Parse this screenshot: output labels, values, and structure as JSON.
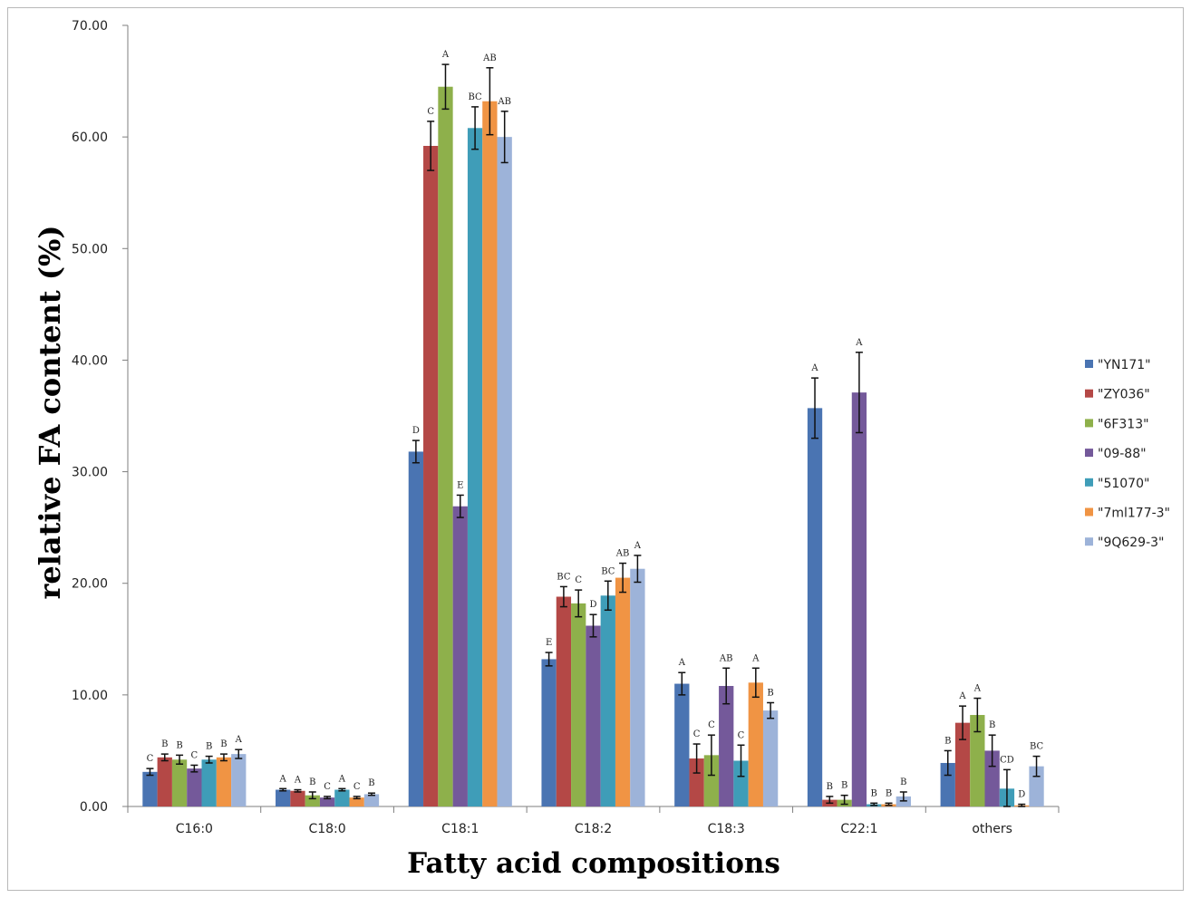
{
  "chart_data": {
    "type": "bar",
    "xlabel": "Fatty acid compositions",
    "ylabel": "relative FA content (%)",
    "ylim": [
      0,
      70
    ],
    "yticks": [
      "0.00",
      "10.00",
      "20.00",
      "30.00",
      "40.00",
      "50.00",
      "60.00",
      "70.00"
    ],
    "legend_position": "right",
    "categories": [
      "C16:0",
      "C18:0",
      "C18:1",
      "C18:2",
      "C18:3",
      "C22:1",
      "others"
    ],
    "series": [
      {
        "name": "\"YN171\"",
        "color": "#4a74b2",
        "values": [
          3.1,
          1.5,
          31.8,
          13.2,
          11.0,
          35.7,
          3.9
        ],
        "errors": [
          0.3,
          0.1,
          1.0,
          0.6,
          1.0,
          2.7,
          1.1
        ],
        "letters": [
          "C",
          "A",
          "D",
          "E",
          "A",
          "A",
          "B"
        ]
      },
      {
        "name": "\"ZY036\"",
        "color": "#b44846",
        "values": [
          4.4,
          1.4,
          59.2,
          18.8,
          4.3,
          0.6,
          7.5
        ],
        "errors": [
          0.3,
          0.1,
          2.2,
          0.9,
          1.3,
          0.3,
          1.5
        ],
        "letters": [
          "B",
          "A",
          "C",
          "BC",
          "C",
          "B",
          "A"
        ]
      },
      {
        "name": "\"6F313\"",
        "color": "#8eb04b",
        "values": [
          4.2,
          1.0,
          64.5,
          18.2,
          4.6,
          0.6,
          8.2
        ],
        "errors": [
          0.4,
          0.3,
          2.0,
          1.2,
          1.8,
          0.4,
          1.5
        ],
        "letters": [
          "B",
          "B",
          "A",
          "C",
          "C",
          "B",
          "A"
        ]
      },
      {
        "name": "\"09-88\"",
        "color": "#74599a",
        "values": [
          3.4,
          0.8,
          26.9,
          16.2,
          10.8,
          37.1,
          5.0
        ],
        "errors": [
          0.3,
          0.1,
          1.0,
          1.0,
          1.6,
          3.6,
          1.4
        ],
        "letters": [
          "C",
          "C",
          "E",
          "D",
          "AB",
          "A",
          "B"
        ]
      },
      {
        "name": "\"51070\"",
        "color": "#3f9db8",
        "values": [
          4.2,
          1.5,
          60.8,
          18.9,
          4.1,
          0.2,
          1.6
        ],
        "errors": [
          0.3,
          0.1,
          1.9,
          1.3,
          1.4,
          0.1,
          1.7
        ],
        "letters": [
          "B",
          "A",
          "BC",
          "BC",
          "C",
          "B",
          "CD"
        ]
      },
      {
        "name": "\"7ml177-3\"",
        "color": "#f09444",
        "values": [
          4.4,
          0.8,
          63.2,
          20.5,
          11.1,
          0.2,
          0.1
        ],
        "errors": [
          0.3,
          0.1,
          3.0,
          1.3,
          1.3,
          0.1,
          0.1
        ],
        "letters": [
          "B",
          "C",
          "AB",
          "AB",
          "A",
          "B",
          "D"
        ]
      },
      {
        "name": "\"9Q629-3\"",
        "color": "#9db3d9",
        "values": [
          4.7,
          1.1,
          60.0,
          21.3,
          8.6,
          0.9,
          3.6
        ],
        "errors": [
          0.4,
          0.1,
          2.3,
          1.2,
          0.7,
          0.4,
          0.9
        ],
        "letters": [
          "A",
          "B",
          "AB",
          "A",
          "B",
          "B",
          "BC"
        ]
      }
    ]
  }
}
